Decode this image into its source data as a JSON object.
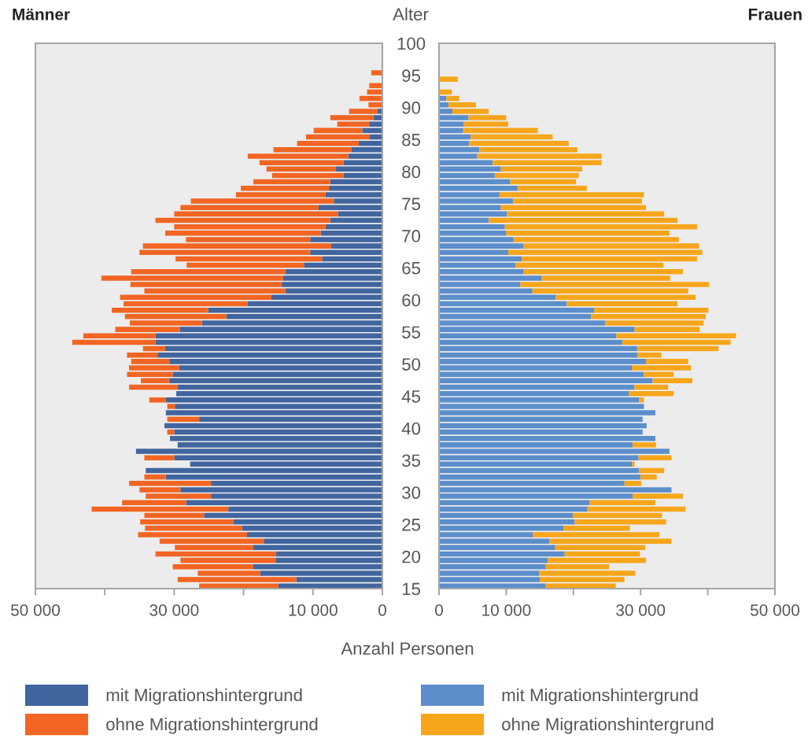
{
  "chart_data": [
    {
      "type": "bar",
      "orientation": "horizontal",
      "stacked": true,
      "title": "Männer",
      "xlabel": "Anzahl Personen",
      "x": [
        95,
        94,
        93,
        92,
        91,
        90,
        89,
        88,
        87,
        86,
        85,
        84,
        83,
        82,
        81,
        80,
        79,
        78,
        77,
        76,
        75,
        74,
        73,
        72,
        71,
        70,
        69,
        68,
        67,
        66,
        65,
        64,
        63,
        62,
        61,
        60,
        59,
        58,
        57,
        56,
        55,
        54,
        53,
        52,
        51,
        50,
        49,
        48,
        47,
        46,
        45,
        44,
        43,
        42,
        41,
        40,
        39,
        38,
        37,
        36,
        35,
        34,
        33,
        32,
        31,
        30,
        29,
        28,
        27,
        26,
        25,
        24,
        23,
        22,
        21,
        20,
        19,
        18,
        17,
        16,
        15
      ],
      "series": [
        {
          "name": "mit Migrationshintergrund",
          "color": "#41659e",
          "values": [
            0,
            0,
            0,
            0,
            0,
            0,
            700,
            1300,
            1900,
            2900,
            1900,
            3400,
            4500,
            4900,
            5600,
            6700,
            5600,
            7500,
            7700,
            8200,
            7000,
            9200,
            6400,
            7500,
            8200,
            8900,
            10400,
            7400,
            10400,
            8700,
            11300,
            14000,
            14300,
            14500,
            14000,
            16000,
            19400,
            25100,
            22500,
            26000,
            29200,
            32700,
            32700,
            31300,
            32400,
            30700,
            29300,
            30200,
            30700,
            29500,
            29700,
            31200,
            29900,
            31200,
            26400,
            31400,
            30000,
            30600,
            29500,
            35500,
            30000,
            27700,
            34100,
            31200,
            24700,
            29100,
            24700,
            28300,
            22200,
            25700,
            21500,
            20200,
            19500,
            17100,
            18600,
            15300,
            15400,
            18600,
            17600,
            12400,
            15000
          ]
        },
        {
          "name": "ohne Migrationshintergrund",
          "color": "#f26522",
          "values": [
            1600,
            0,
            1900,
            2200,
            3300,
            2000,
            4100,
            6200,
            4600,
            7000,
            9100,
            8900,
            11200,
            14500,
            12100,
            10000,
            10300,
            11100,
            12700,
            12900,
            20600,
            19900,
            23600,
            25200,
            21800,
            22400,
            17900,
            27100,
            24600,
            21100,
            16900,
            22200,
            26200,
            21800,
            20300,
            21800,
            17900,
            13900,
            14600,
            10400,
            9300,
            10400,
            12000,
            3200,
            4400,
            5500,
            7200,
            6600,
            4100,
            7000,
            0,
            2400,
            1100,
            0,
            4600,
            0,
            1000,
            0,
            0,
            0,
            4300,
            0,
            0,
            3100,
            11800,
            5900,
            9400,
            9200,
            19700,
            8600,
            13400,
            14000,
            15700,
            15000,
            11300,
            17400,
            13700,
            11600,
            9000,
            17100,
            11400
          ]
        }
      ],
      "xlim": [
        50000,
        0
      ],
      "xticks": [
        {
          "value": 50000,
          "label": "50 000"
        },
        {
          "value": 40000,
          "label": null
        },
        {
          "value": 30000,
          "label": "30 000"
        },
        {
          "value": 20000,
          "label": null
        },
        {
          "value": 10000,
          "label": "10 000"
        },
        0
      ],
      "ylim": [
        15,
        100
      ],
      "yticks": [
        15,
        20,
        25,
        30,
        35,
        40,
        45,
        50,
        55,
        60,
        65,
        70,
        75,
        80,
        85,
        90,
        95,
        100
      ],
      "tick_labels": "x",
      "legend": "bottom"
    },
    {
      "type": "bar",
      "orientation": "horizontal",
      "stacked": true,
      "title": "Frauen",
      "ylabel": "Alter",
      "x": [
        95,
        94,
        93,
        92,
        91,
        90,
        89,
        88,
        87,
        86,
        85,
        84,
        83,
        82,
        81,
        80,
        79,
        78,
        77,
        76,
        75,
        74,
        73,
        72,
        71,
        70,
        69,
        68,
        67,
        66,
        65,
        64,
        63,
        62,
        61,
        60,
        59,
        58,
        57,
        56,
        55,
        54,
        53,
        52,
        51,
        50,
        49,
        48,
        47,
        46,
        45,
        44,
        43,
        42,
        41,
        40,
        39,
        38,
        37,
        36,
        35,
        34,
        33,
        32,
        31,
        30,
        29,
        28,
        27,
        26,
        25,
        24,
        23,
        22,
        21,
        20,
        19,
        18,
        17,
        16,
        15
      ],
      "series": [
        {
          "name": "mit Migrationshintergrund",
          "color": "#5b8ecb",
          "values": [
            0,
            0,
            0,
            0,
            1100,
            1400,
            2000,
            4400,
            3700,
            3600,
            4700,
            4500,
            6000,
            5700,
            8000,
            9200,
            8300,
            10600,
            11700,
            9000,
            11000,
            9200,
            10100,
            7400,
            9800,
            10000,
            11100,
            12600,
            10300,
            12300,
            11400,
            12600,
            15300,
            12100,
            13900,
            17400,
            19000,
            23100,
            22600,
            24700,
            29100,
            26400,
            27300,
            29500,
            29500,
            30800,
            28700,
            30500,
            31800,
            29100,
            28300,
            29800,
            30500,
            32200,
            30300,
            30900,
            30300,
            32200,
            28800,
            34300,
            29700,
            28700,
            29800,
            30000,
            27600,
            34600,
            28800,
            22400,
            22100,
            19900,
            20200,
            18500,
            14000,
            16400,
            17300,
            18700,
            16200,
            15900,
            14900,
            15000,
            15900
          ]
        },
        {
          "name": "ohne Migrationshintergrund",
          "color": "#f7a61b",
          "values": [
            0,
            2800,
            0,
            1900,
            1900,
            4100,
            5400,
            5600,
            6600,
            11100,
            12200,
            14800,
            14600,
            18500,
            16200,
            12100,
            12500,
            9800,
            10300,
            21500,
            19200,
            21600,
            23400,
            28100,
            28600,
            24300,
            24600,
            26100,
            28900,
            26100,
            22000,
            23700,
            19100,
            28100,
            23200,
            20800,
            16500,
            17000,
            17100,
            14700,
            9700,
            17800,
            16100,
            12100,
            3600,
            6300,
            8800,
            4400,
            5900,
            5000,
            6600,
            700,
            0,
            0,
            0,
            0,
            0,
            0,
            3500,
            0,
            4900,
            400,
            3700,
            2400,
            2500,
            0,
            7500,
            9800,
            14600,
            13300,
            13600,
            9900,
            18800,
            18200,
            13400,
            11200,
            14600,
            9400,
            14300,
            12600,
            10400
          ]
        }
      ],
      "xlim": [
        0,
        50000
      ],
      "xticks": [
        0,
        {
          "value": 10000,
          "label": "10 000"
        },
        {
          "value": 20000,
          "label": null
        },
        {
          "value": 30000,
          "label": "30 000"
        },
        {
          "value": 40000,
          "label": null
        },
        {
          "value": 50000,
          "label": "50 000"
        }
      ],
      "ylim": [
        15,
        100
      ],
      "yticks": [
        15,
        20,
        25,
        30,
        35,
        40,
        45,
        50,
        55,
        60,
        65,
        70,
        75,
        80,
        85,
        90,
        95,
        100
      ],
      "legend": "bottom"
    }
  ]
}
